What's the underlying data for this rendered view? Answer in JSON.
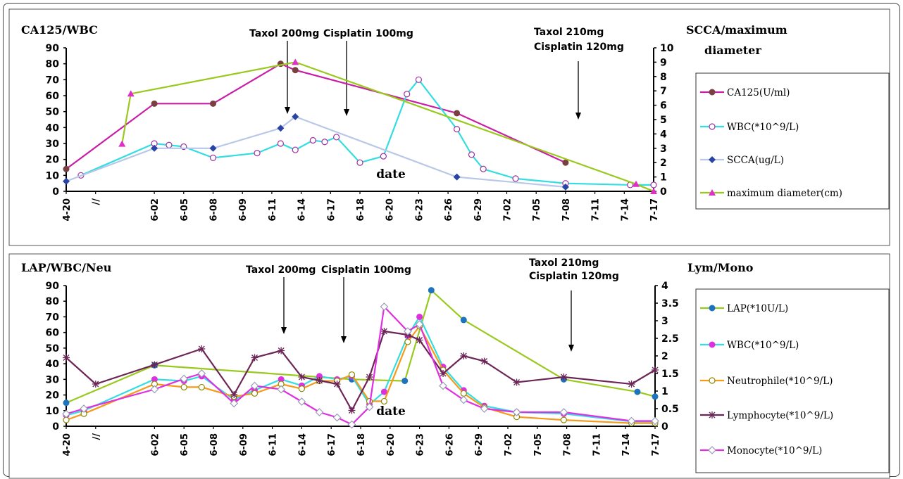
{
  "chart_data": [
    {
      "type": "line",
      "left_axis_title": "CA125/WBC",
      "right_axis_title_line1": "SCCA/maximum",
      "right_axis_title_line2": "diameter",
      "xlabel": "date",
      "left_ticks": [
        "0",
        "10",
        "20",
        "30",
        "40",
        "50",
        "60",
        "70",
        "80",
        "90"
      ],
      "right_ticks": [
        "0",
        "1",
        "2",
        "3",
        "4",
        "5",
        "6",
        "7",
        "8",
        "9",
        "10"
      ],
      "ylim_left": [
        0,
        90
      ],
      "ylim_right": [
        0,
        10
      ],
      "x_ticks": [
        {
          "i": 0,
          "label": "4-20"
        },
        {
          "i": 1,
          "label": "//"
        },
        {
          "i": 3,
          "label": "6-02"
        },
        {
          "i": 4,
          "label": "6-05"
        },
        {
          "i": 5,
          "label": "6-08"
        },
        {
          "i": 6,
          "label": "6-09"
        },
        {
          "i": 7,
          "label": "6-11"
        },
        {
          "i": 8,
          "label": "6-14"
        },
        {
          "i": 9,
          "label": "6-17"
        },
        {
          "i": 10,
          "label": "6-18"
        },
        {
          "i": 11,
          "label": "6-20"
        },
        {
          "i": 12,
          "label": "6-23"
        },
        {
          "i": 13,
          "label": "6-26"
        },
        {
          "i": 14,
          "label": "6-29"
        },
        {
          "i": 15,
          "label": "7-02"
        },
        {
          "i": 16,
          "label": "7-05"
        },
        {
          "i": 17,
          "label": "7-08"
        },
        {
          "i": 18,
          "label": "7-11"
        },
        {
          "i": 19,
          "label": "7-14"
        },
        {
          "i": 20,
          "label": "7-17"
        }
      ],
      "annotations": [
        {
          "text": "Taxol 200mg",
          "x": 8.8
        },
        {
          "text": "Cisplatin 100mg",
          "x": 11.2
        },
        {
          "text": "Taxol 210mg",
          "x": 18.5
        },
        {
          "text": "Cisplatin 120mg",
          "x": 18.5
        }
      ],
      "series": [
        {
          "name": "CA125(U/ml)",
          "axis": "left",
          "color": "#c81ea6",
          "marker": "circle-filled",
          "marker_color": "#7a3f3f",
          "x": [
            0,
            3,
            5,
            7.3,
            7.8,
            13.3,
            17.0
          ],
          "y": [
            14,
            55,
            55,
            80,
            76,
            49,
            18
          ]
        },
        {
          "name": "WBC(*10^9/L)",
          "axis": "left",
          "color": "#33dde0",
          "marker": "circle-open",
          "marker_color": "#a12fa1",
          "x": [
            0.5,
            3,
            3.5,
            4,
            5,
            6.5,
            7.3,
            7.8,
            8.4,
            8.8,
            9.2,
            10,
            10.8,
            11.6,
            12,
            13.3,
            13.8,
            14.2,
            15.3,
            17.0,
            19.2,
            20
          ],
          "y": [
            10,
            30,
            29,
            28,
            21,
            24,
            30,
            26,
            32,
            31,
            34,
            18,
            22,
            61,
            70,
            39,
            23,
            14,
            8,
            5,
            4,
            4
          ]
        },
        {
          "name": "SCCA(ug/L)",
          "axis": "right",
          "color": "#b8c8e6",
          "marker": "diamond-filled",
          "marker_color": "#2a44a5",
          "x": [
            0,
            3,
            5,
            7.3,
            7.8,
            13.3,
            17.0
          ],
          "y": [
            0.7,
            3.0,
            3.0,
            4.4,
            5.2,
            1.0,
            0.3
          ]
        },
        {
          "name": "maximum diameter(cm)",
          "axis": "right",
          "color": "#9ac91e",
          "marker": "triangle-filled",
          "marker_color": "#e02fc7",
          "x": [
            1.9,
            2.2,
            7.8,
            19.4,
            20
          ],
          "y": [
            3.3,
            6.8,
            9.0,
            0.5,
            0
          ]
        }
      ]
    },
    {
      "type": "line",
      "left_axis_title": "LAP/WBC/Neu",
      "right_axis_title_line1": "Lym/Mono",
      "right_axis_title_line2": "",
      "xlabel": "date",
      "left_ticks": [
        "0",
        "10",
        "20",
        "30",
        "40",
        "50",
        "60",
        "70",
        "80",
        "90"
      ],
      "right_ticks": [
        "0",
        "0.5",
        "1",
        "1.5",
        "2",
        "2.5",
        "3",
        "3.5",
        "4"
      ],
      "ylim_left": [
        0,
        90
      ],
      "ylim_right": [
        0,
        4
      ],
      "x_ticks": [
        {
          "i": 0,
          "label": "4-20"
        },
        {
          "i": 1,
          "label": "//"
        },
        {
          "i": 3,
          "label": "6-02"
        },
        {
          "i": 4,
          "label": "6-05"
        },
        {
          "i": 5,
          "label": "6-08"
        },
        {
          "i": 6,
          "label": "6-09"
        },
        {
          "i": 7,
          "label": "6-11"
        },
        {
          "i": 8,
          "label": "6-14"
        },
        {
          "i": 9,
          "label": "6-17"
        },
        {
          "i": 10,
          "label": "6-18"
        },
        {
          "i": 11,
          "label": "6-20"
        },
        {
          "i": 12,
          "label": "6-23"
        },
        {
          "i": 13,
          "label": "6-26"
        },
        {
          "i": 14,
          "label": "6-29"
        },
        {
          "i": 15,
          "label": "7-02"
        },
        {
          "i": 16,
          "label": "7-05"
        },
        {
          "i": 17,
          "label": "7-08"
        },
        {
          "i": 18,
          "label": "7-11"
        },
        {
          "i": 19,
          "label": "7-14"
        },
        {
          "i": 20,
          "label": "7-17"
        }
      ],
      "annotations": [
        {
          "text": "Taxol 200mg",
          "x": 8.8
        },
        {
          "text": "Cisplatin 100mg",
          "x": 11.2
        },
        {
          "text": "Taxol 210mg",
          "x": 18.5
        },
        {
          "text": "Cisplatin 120mg",
          "x": 18.5
        }
      ],
      "series": [
        {
          "name": "LAP(*10U/L)",
          "axis": "left",
          "color": "#9ac91e",
          "marker": "circle-filled",
          "marker_color": "#1e73be",
          "x": [
            0,
            3,
            9.7,
            11.5,
            12.4,
            13.5,
            16.9,
            19.4,
            20
          ],
          "y": [
            15,
            39,
            30,
            29,
            87,
            68,
            30,
            22,
            19
          ]
        },
        {
          "name": "WBC(*10^9/L)",
          "axis": "left",
          "color": "#33dde0",
          "marker": "circle-filled",
          "marker_color": "#e02fe0",
          "x": [
            0,
            0.6,
            3,
            4,
            4.6,
            5.7,
            6.4,
            7.3,
            8,
            8.6,
            9.2,
            9.7,
            10.3,
            10.8,
            11.6,
            12,
            12.8,
            13.5,
            14.2,
            15.3,
            16.9,
            19.2,
            20
          ],
          "y": [
            7,
            10,
            30,
            29,
            32,
            17,
            23,
            30,
            26,
            32,
            30,
            32,
            14,
            22,
            58,
            70,
            38,
            23,
            13,
            9,
            8,
            3,
            3
          ]
        },
        {
          "name": "Neutrophile(*10^9/L)",
          "axis": "left",
          "color": "#f59a1a",
          "marker": "circle-open",
          "marker_color": "#8a8a00",
          "x": [
            0,
            0.6,
            3,
            4,
            4.6,
            5.7,
            6.4,
            7.3,
            8,
            8.6,
            9.2,
            9.7,
            10.3,
            10.8,
            11.6,
            12,
            12.8,
            13.5,
            14.2,
            15.3,
            16.9,
            19.2,
            20
          ],
          "y": [
            4,
            8,
            27,
            25,
            25,
            19,
            21,
            27,
            24,
            29,
            29,
            33,
            16,
            16,
            54,
            64,
            36,
            21,
            12,
            6,
            4,
            2,
            2
          ]
        },
        {
          "name": "Lymphocyte(*10^9/L)",
          "axis": "right",
          "color": "#6b2556",
          "marker": "star",
          "marker_color": "#6b2556",
          "x": [
            0,
            1,
            3,
            4.6,
            5.7,
            6.4,
            7.3,
            8,
            8.6,
            9.2,
            9.7,
            10.3,
            10.8,
            11.6,
            12,
            12.8,
            13.5,
            14.2,
            15.3,
            16.9,
            19.2,
            20
          ],
          "y": [
            1.95,
            1.2,
            1.75,
            2.2,
            0.9,
            1.95,
            2.15,
            1.4,
            1.3,
            1.2,
            0.45,
            1.4,
            2.7,
            2.6,
            2.45,
            1.5,
            2.0,
            1.85,
            1.25,
            1.4,
            1.2,
            1.6
          ]
        },
        {
          "name": "Monocyte(*10^9/L)",
          "axis": "right",
          "color": "#e02fe0",
          "marker": "diamond-open",
          "marker_color": "#9a9ab8",
          "x": [
            0,
            0.6,
            3,
            4,
            4.6,
            5.7,
            6.4,
            7.3,
            8,
            8.6,
            9.2,
            9.7,
            10.3,
            10.8,
            11.6,
            12,
            12.8,
            13.5,
            14.2,
            15.3,
            16.9,
            19.2,
            20
          ],
          "y": [
            0.35,
            0.5,
            1.05,
            1.35,
            1.5,
            0.65,
            1.15,
            1.05,
            0.7,
            0.4,
            0.25,
            0.05,
            0.55,
            3.4,
            2.7,
            2.9,
            1.15,
            0.75,
            0.5,
            0.4,
            0.4,
            0.15,
            0.15
          ]
        }
      ]
    }
  ]
}
